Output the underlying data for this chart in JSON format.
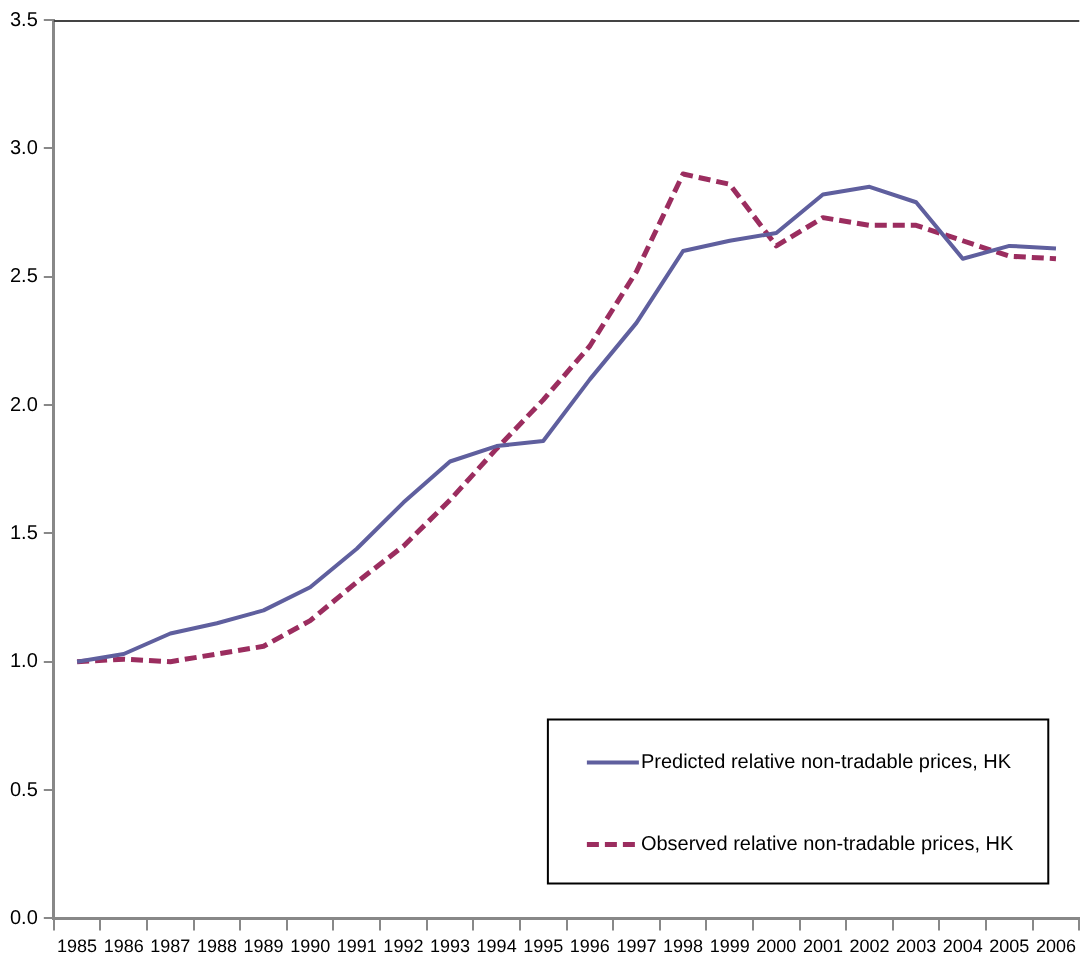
{
  "chart_data": {
    "type": "line",
    "categories": [
      "1985",
      "1986",
      "1987",
      "1988",
      "1989",
      "1990",
      "1991",
      "1992",
      "1993",
      "1994",
      "1995",
      "1996",
      "1997",
      "1998",
      "1999",
      "2000",
      "2001",
      "2002",
      "2003",
      "2004",
      "2005",
      "2006"
    ],
    "series": [
      {
        "name": "Predicted relative non-tradable prices, HK",
        "color": "#5f5f9e",
        "line_style": "solid",
        "values": [
          1.0,
          1.03,
          1.11,
          1.15,
          1.2,
          1.29,
          1.44,
          1.62,
          1.78,
          1.84,
          1.86,
          2.1,
          2.32,
          2.6,
          2.64,
          2.67,
          2.82,
          2.85,
          2.79,
          2.57,
          2.62,
          2.61
        ]
      },
      {
        "name": "Observed relative non-tradable prices, HK",
        "color": "#9b2d5f",
        "line_style": "dashed",
        "values": [
          1.0,
          1.01,
          1.0,
          1.03,
          1.06,
          1.16,
          1.31,
          1.45,
          1.63,
          1.83,
          2.02,
          2.23,
          2.52,
          2.9,
          2.86,
          2.62,
          2.73,
          2.7,
          2.7,
          2.64,
          2.58,
          2.57
        ]
      }
    ],
    "ylim": [
      0,
      3.5
    ],
    "yticks": [
      {
        "value": 0,
        "label": "0.0"
      },
      {
        "value": 0.5,
        "label": "0.5"
      },
      {
        "value": 1,
        "label": "1.0"
      },
      {
        "value": 1.5,
        "label": "1.5"
      },
      {
        "value": 2,
        "label": "2.0"
      },
      {
        "value": 2.5,
        "label": "2.5"
      },
      {
        "value": 3,
        "label": "3.0"
      },
      {
        "value": 3.5,
        "label": "3.5"
      }
    ],
    "grid": false,
    "legend": "bottom right",
    "marker": "none"
  }
}
